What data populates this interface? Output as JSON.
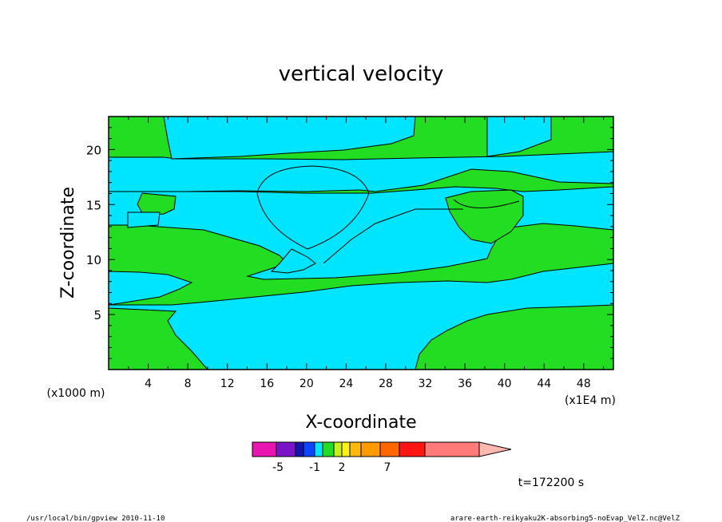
{
  "chart_data": {
    "type": "heatmap",
    "title": "vertical velocity",
    "xlabel": "X-coordinate",
    "ylabel": "Z-coordinate",
    "x_unit": "(x1000 m)",
    "x_scale_note": "(x1E4 m)",
    "xlim": [
      0,
      51
    ],
    "ylim": [
      0,
      23
    ],
    "x_ticks": [
      "4",
      "8",
      "12",
      "16",
      "20",
      "24",
      "28",
      "32",
      "36",
      "40",
      "44",
      "48"
    ],
    "x_tick_values": [
      4,
      8,
      12,
      16,
      20,
      24,
      28,
      32,
      36,
      40,
      44,
      48
    ],
    "y_ticks": [
      "5",
      "10",
      "15",
      "20"
    ],
    "y_tick_values": [
      5,
      10,
      15,
      20
    ],
    "regions": [
      {
        "name": "green",
        "color": "#22dd22"
      },
      {
        "name": "cyan",
        "color": "#00e5ff"
      }
    ],
    "colorbar": {
      "colors": [
        "#e815b0",
        "#7a14c8",
        "#1414b0",
        "#0a45ff",
        "#00e5ff",
        "#22dd22",
        "#c7f019",
        "#fff212",
        "#ffb90a",
        "#ff9a00",
        "#ff6600",
        "#ff1414",
        "#ff7a78",
        "#ffb8b0"
      ],
      "tick_labels": [
        "-5",
        "-1",
        "2",
        "7"
      ]
    },
    "time_label": "t=172200 s",
    "footer_left": "/usr/local/bin/gpview  2010-11-10",
    "footer_right": "arare-earth-reikyaku2K-absorbing5-noEvap_VelZ.nc@VelZ"
  }
}
